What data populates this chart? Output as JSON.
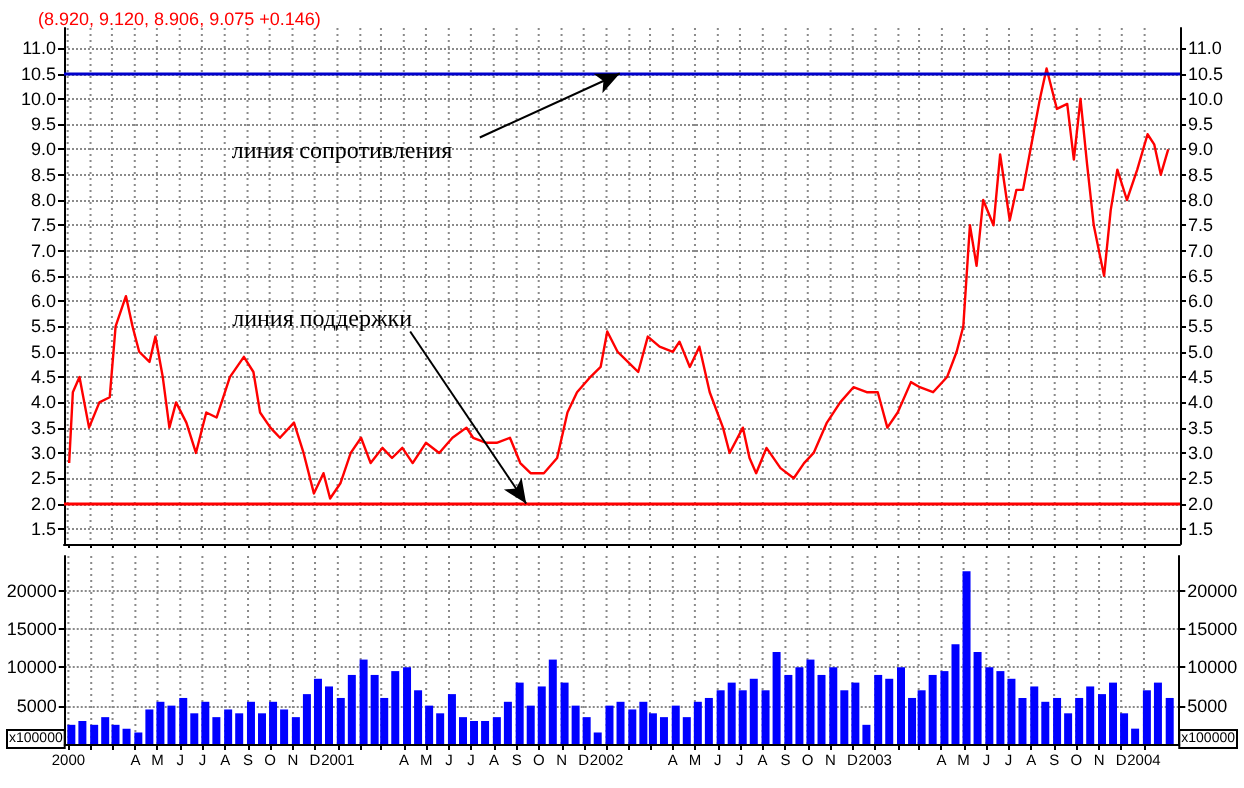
{
  "chart_data": [
    {
      "type": "line",
      "title": "(8.920, 9.120, 8.906, 9.075 +0.146)",
      "color": "#ff0000",
      "grid": true,
      "tick_labels": "y",
      "x": [
        "2000-01-03",
        "2000-01-08",
        "2000-01-17",
        "2000-01-30",
        "2000-02-13",
        "2000-02-27",
        "2000-03-06",
        "2000-03-20",
        "2000-03-29",
        "2000-04-07",
        "2000-04-21",
        "2000-04-29",
        "2000-05-09",
        "2000-05-18",
        "2000-05-27",
        "2000-06-10",
        "2000-06-23",
        "2000-07-07",
        "2000-07-21",
        "2000-08-08",
        "2000-08-27",
        "2000-09-09",
        "2000-09-18",
        "2000-10-02",
        "2000-10-15",
        "2000-11-03",
        "2000-11-16",
        "2000-11-30",
        "2000-12-13",
        "2000-12-22",
        "2001-01-05",
        "2001-01-19",
        "2001-02-02",
        "2001-02-15",
        "2001-03-03",
        "2001-03-16",
        "2001-03-30",
        "2001-04-13",
        "2001-05-01",
        "2001-05-19",
        "2001-06-06",
        "2001-06-25",
        "2001-07-04",
        "2001-07-22",
        "2001-08-05",
        "2001-08-23",
        "2001-09-06",
        "2001-09-20",
        "2001-10-08",
        "2001-10-26",
        "2001-11-09",
        "2001-11-22",
        "2001-12-10",
        "2001-12-24",
        "2002-01-02",
        "2002-01-16",
        "2002-01-30",
        "2002-02-13",
        "2002-02-26",
        "2002-03-14",
        "2002-04-01",
        "2002-04-10",
        "2002-04-24",
        "2002-05-07",
        "2002-05-21",
        "2002-06-08",
        "2002-06-17",
        "2002-07-05",
        "2002-07-14",
        "2002-07-23",
        "2002-08-06",
        "2002-08-25",
        "2002-09-12",
        "2002-09-26",
        "2002-10-09",
        "2002-10-27",
        "2002-11-14",
        "2002-12-02",
        "2002-12-20",
        "2003-01-04",
        "2003-01-17",
        "2003-01-31",
        "2003-02-18",
        "2003-03-02",
        "2003-03-20",
        "2003-04-08",
        "2003-04-21",
        "2003-04-30",
        "2003-05-09",
        "2003-05-18",
        "2003-05-27",
        "2003-06-10",
        "2003-06-19",
        "2003-07-02",
        "2003-07-11",
        "2003-07-20",
        "2003-08-03",
        "2003-08-12",
        "2003-08-21",
        "2003-09-04",
        "2003-09-18",
        "2003-09-27",
        "2003-10-06",
        "2003-10-15",
        "2003-10-24",
        "2003-11-07",
        "2003-11-16",
        "2003-11-25",
        "2003-12-08",
        "2003-12-22",
        "2004-01-05",
        "2004-01-14",
        "2004-01-23",
        "2004-02-02"
      ],
      "values": [
        2.8,
        4.2,
        4.5,
        3.5,
        4.0,
        4.1,
        5.5,
        6.1,
        5.5,
        5.0,
        4.8,
        5.3,
        4.5,
        3.5,
        4.0,
        3.6,
        3.0,
        3.8,
        3.7,
        4.5,
        4.9,
        4.6,
        3.8,
        3.5,
        3.3,
        3.6,
        3.0,
        2.2,
        2.6,
        2.1,
        2.4,
        3.0,
        3.3,
        2.8,
        3.1,
        2.9,
        3.1,
        2.8,
        3.2,
        3.0,
        3.3,
        3.5,
        3.3,
        3.2,
        3.2,
        3.3,
        2.8,
        2.6,
        2.6,
        2.9,
        3.8,
        4.2,
        4.5,
        4.7,
        5.4,
        5.0,
        4.8,
        4.6,
        5.3,
        5.1,
        5.0,
        5.2,
        4.7,
        5.1,
        4.2,
        3.5,
        3.0,
        3.5,
        2.9,
        2.6,
        3.1,
        2.7,
        2.5,
        2.8,
        3.0,
        3.6,
        4.0,
        4.3,
        4.2,
        4.2,
        3.5,
        3.8,
        4.4,
        4.3,
        4.2,
        4.5,
        5.0,
        5.5,
        7.5,
        6.7,
        8.0,
        7.5,
        8.9,
        7.6,
        8.2,
        8.2,
        9.3,
        10.0,
        10.6,
        9.8,
        9.9,
        8.8,
        10.0,
        8.7,
        7.5,
        6.5,
        7.8,
        8.6,
        8.0,
        8.6,
        9.3,
        9.1,
        8.5,
        9.0
      ],
      "xlim": [
        "1999-12-27",
        "2004-02-18"
      ],
      "xticks": [
        {
          "value": "2000-01",
          "label": null
        },
        {
          "value": "2000-02",
          "label": null
        },
        {
          "value": "2000-03",
          "label": null
        },
        {
          "value": "2000-04",
          "label": null
        },
        {
          "value": "2000-05",
          "label": null
        },
        {
          "value": "2000-06",
          "label": null
        },
        {
          "value": "2000-07",
          "label": null
        },
        {
          "value": "2000-08",
          "label": null
        },
        {
          "value": "2000-09",
          "label": null
        },
        {
          "value": "2000-10",
          "label": null
        },
        {
          "value": "2000-11",
          "label": null
        },
        {
          "value": "2000-12",
          "label": null
        },
        {
          "value": "2001-01",
          "label": null
        },
        {
          "value": "2001-02",
          "label": null
        },
        {
          "value": "2001-03",
          "label": null
        },
        {
          "value": "2001-04",
          "label": null
        },
        {
          "value": "2001-05",
          "label": null
        },
        {
          "value": "2001-06",
          "label": null
        },
        {
          "value": "2001-07",
          "label": null
        },
        {
          "value": "2001-08",
          "label": null
        },
        {
          "value": "2001-09",
          "label": null
        },
        {
          "value": "2001-10",
          "label": null
        },
        {
          "value": "2001-11",
          "label": null
        },
        {
          "value": "2001-12",
          "label": null
        },
        {
          "value": "2002-01",
          "label": null
        },
        {
          "value": "2002-02",
          "label": null
        },
        {
          "value": "2002-03",
          "label": null
        },
        {
          "value": "2002-04",
          "label": null
        },
        {
          "value": "2002-05",
          "label": null
        },
        {
          "value": "2002-06",
          "label": null
        },
        {
          "value": "2002-07",
          "label": null
        },
        {
          "value": "2002-08",
          "label": null
        },
        {
          "value": "2002-09",
          "label": null
        },
        {
          "value": "2002-10",
          "label": null
        },
        {
          "value": "2002-11",
          "label": null
        },
        {
          "value": "2002-12",
          "label": null
        },
        {
          "value": "2003-01",
          "label": null
        },
        {
          "value": "2003-02",
          "label": null
        },
        {
          "value": "2003-03",
          "label": null
        },
        {
          "value": "2003-04",
          "label": null
        },
        {
          "value": "2003-05",
          "label": null
        },
        {
          "value": "2003-06",
          "label": null
        },
        {
          "value": "2003-07",
          "label": null
        },
        {
          "value": "2003-08",
          "label": null
        },
        {
          "value": "2003-09",
          "label": null
        },
        {
          "value": "2003-10",
          "label": null
        },
        {
          "value": "2003-11",
          "label": null
        },
        {
          "value": "2003-12",
          "label": null
        },
        {
          "value": "2004-01",
          "label": null
        }
      ],
      "ylim": [
        1.2,
        11.4
      ],
      "yticks": [
        1.5,
        {
          "value": 2,
          "label": "2.0"
        },
        2.5,
        {
          "value": 3,
          "label": "3.0"
        },
        3.5,
        {
          "value": 4,
          "label": "4.0"
        },
        4.5,
        {
          "value": 5,
          "label": "5.0"
        },
        5.5,
        {
          "value": 6,
          "label": "6.0"
        },
        6.5,
        {
          "value": 7,
          "label": "7.0"
        },
        7.5,
        {
          "value": 8,
          "label": "8.0"
        },
        8.5,
        {
          "value": 9,
          "label": "9.0"
        },
        9.5,
        {
          "value": 10,
          "label": "10.0"
        },
        10.5,
        {
          "value": 11,
          "label": "11.0"
        }
      ],
      "y2lim": [
        1.2,
        11.4
      ],
      "y2ticks": [
        1.5,
        {
          "value": 2,
          "label": "2.0"
        },
        2.5,
        {
          "value": 3,
          "label": "3.0"
        },
        3.5,
        {
          "value": 4,
          "label": "4.0"
        },
        4.5,
        {
          "value": 5,
          "label": "5.0"
        },
        5.5,
        {
          "value": 6,
          "label": "6.0"
        },
        6.5,
        {
          "value": 7,
          "label": "7.0"
        },
        7.5,
        {
          "value": 8,
          "label": "8.0"
        },
        8.5,
        {
          "value": 9,
          "label": "9.0"
        },
        9.5,
        {
          "value": 10,
          "label": "10.0"
        },
        10.5,
        {
          "value": 11,
          "label": "11.0"
        }
      ],
      "ref_lines": [
        {
          "axis": "y",
          "value": 10.5,
          "color": "#0000cc"
        },
        {
          "axis": "y",
          "value": 2.0,
          "color": "#ff0000"
        }
      ],
      "annotations": [
        {
          "text": "линия сопротивления",
          "x": "2002-01-19",
          "y": 10.5
        },
        {
          "text": "линия поддержки",
          "x": "2001-09-14",
          "y": 2.0
        }
      ]
    },
    {
      "type": "bar",
      "color": "#0000ff",
      "grid": true,
      "ylabel": "x100000",
      "y2label": "x100000",
      "x": [
        "2000-01-05",
        "2000-01-20",
        "2000-02-05",
        "2000-02-20",
        "2000-03-05",
        "2000-03-20",
        "2000-04-05",
        "2000-04-20",
        "2000-05-05",
        "2000-05-20",
        "2000-06-05",
        "2000-06-20",
        "2000-07-05",
        "2000-07-20",
        "2000-08-05",
        "2000-08-20",
        "2000-09-05",
        "2000-09-20",
        "2000-10-05",
        "2000-10-20",
        "2000-11-05",
        "2000-11-20",
        "2000-12-05",
        "2000-12-20",
        "2001-01-05",
        "2001-01-20",
        "2001-02-05",
        "2001-02-20",
        "2001-03-05",
        "2001-03-20",
        "2001-04-05",
        "2001-04-20",
        "2001-05-05",
        "2001-05-20",
        "2001-06-05",
        "2001-06-20",
        "2001-07-05",
        "2001-07-20",
        "2001-08-05",
        "2001-08-20",
        "2001-09-05",
        "2001-09-20",
        "2001-10-05",
        "2001-10-20",
        "2001-11-05",
        "2001-11-20",
        "2001-12-05",
        "2001-12-20",
        "2002-01-05",
        "2002-01-20",
        "2002-02-05",
        "2002-02-20",
        "2002-03-05",
        "2002-03-20",
        "2002-04-05",
        "2002-04-20",
        "2002-05-05",
        "2002-05-20",
        "2002-06-05",
        "2002-06-20",
        "2002-07-05",
        "2002-07-20",
        "2002-08-05",
        "2002-08-20",
        "2002-09-05",
        "2002-09-20",
        "2002-10-05",
        "2002-10-20",
        "2002-11-05",
        "2002-11-20",
        "2002-12-05",
        "2002-12-20",
        "2003-01-05",
        "2003-01-20",
        "2003-02-05",
        "2003-02-20",
        "2003-03-05",
        "2003-03-20",
        "2003-04-05",
        "2003-04-20",
        "2003-05-05",
        "2003-05-20",
        "2003-06-05",
        "2003-06-20",
        "2003-07-05",
        "2003-07-20",
        "2003-08-05",
        "2003-08-20",
        "2003-09-05",
        "2003-09-20",
        "2003-10-05",
        "2003-10-20",
        "2003-11-05",
        "2003-11-20",
        "2003-12-05",
        "2003-12-20",
        "2004-01-05",
        "2004-01-20",
        "2004-02-05"
      ],
      "values": [
        2500,
        3000,
        2500,
        3500,
        2500,
        2000,
        1500,
        4500,
        5500,
        5000,
        6000,
        4000,
        5500,
        3500,
        4500,
        4000,
        5500,
        4000,
        5500,
        4500,
        3500,
        6500,
        8500,
        7500,
        6000,
        9000,
        11000,
        9000,
        6000,
        9500,
        10000,
        7000,
        5000,
        4000,
        6500,
        3500,
        3000,
        3000,
        3500,
        5500,
        8000,
        5000,
        7500,
        11000,
        8000,
        5000,
        3500,
        1500,
        5000,
        5500,
        4500,
        5500,
        4000,
        3500,
        5000,
        3500,
        5500,
        6000,
        7000,
        8000,
        7000,
        8500,
        7000,
        12000,
        9000,
        10000,
        11000,
        9000,
        10000,
        7000,
        8000,
        2500,
        9000,
        8500,
        10000,
        6000,
        7000,
        9000,
        9500,
        13000,
        22500,
        12000,
        10000,
        9500,
        8500,
        6000,
        7500,
        5500,
        6000,
        4000,
        6000,
        7500,
        6500,
        8000,
        4000,
        2000,
        7000,
        8000,
        6000
      ],
      "xlim": [
        "1999-12-27",
        "2004-02-18"
      ],
      "xticks": [
        {
          "value": "2000-01",
          "label": "2000"
        },
        {
          "value": "2000-02",
          "label": null
        },
        {
          "value": "2000-03",
          "label": null
        },
        {
          "value": "2000-04",
          "label": "A"
        },
        {
          "value": "2000-05",
          "label": "M"
        },
        {
          "value": "2000-06",
          "label": "J"
        },
        {
          "value": "2000-07",
          "label": "J"
        },
        {
          "value": "2000-08",
          "label": "A"
        },
        {
          "value": "2000-09",
          "label": "S"
        },
        {
          "value": "2000-10",
          "label": "O"
        },
        {
          "value": "2000-11",
          "label": "N"
        },
        {
          "value": "2000-12",
          "label": "D"
        },
        {
          "value": "2001-01",
          "label": "2001"
        },
        {
          "value": "2001-02",
          "label": null
        },
        {
          "value": "2001-03",
          "label": null
        },
        {
          "value": "2001-04",
          "label": "A"
        },
        {
          "value": "2001-05",
          "label": "M"
        },
        {
          "value": "2001-06",
          "label": "J"
        },
        {
          "value": "2001-07",
          "label": "J"
        },
        {
          "value": "2001-08",
          "label": "A"
        },
        {
          "value": "2001-09",
          "label": "S"
        },
        {
          "value": "2001-10",
          "label": "O"
        },
        {
          "value": "2001-11",
          "label": "N"
        },
        {
          "value": "2001-12",
          "label": "D"
        },
        {
          "value": "2002-01",
          "label": "2002"
        },
        {
          "value": "2002-02",
          "label": null
        },
        {
          "value": "2002-03",
          "label": null
        },
        {
          "value": "2002-04",
          "label": "A"
        },
        {
          "value": "2002-05",
          "label": "M"
        },
        {
          "value": "2002-06",
          "label": "J"
        },
        {
          "value": "2002-07",
          "label": "J"
        },
        {
          "value": "2002-08",
          "label": "A"
        },
        {
          "value": "2002-09",
          "label": "S"
        },
        {
          "value": "2002-10",
          "label": "O"
        },
        {
          "value": "2002-11",
          "label": "N"
        },
        {
          "value": "2002-12",
          "label": "D"
        },
        {
          "value": "2003-01",
          "label": "2003"
        },
        {
          "value": "2003-02",
          "label": null
        },
        {
          "value": "2003-03",
          "label": null
        },
        {
          "value": "2003-04",
          "label": "A"
        },
        {
          "value": "2003-05",
          "label": "M"
        },
        {
          "value": "2003-06",
          "label": "J"
        },
        {
          "value": "2003-07",
          "label": "J"
        },
        {
          "value": "2003-08",
          "label": "A"
        },
        {
          "value": "2003-09",
          "label": "S"
        },
        {
          "value": "2003-10",
          "label": "O"
        },
        {
          "value": "2003-11",
          "label": "N"
        },
        {
          "value": "2003-12",
          "label": "D"
        },
        {
          "value": "2004-01",
          "label": "2004"
        }
      ],
      "ylim": [
        0,
        24500
      ],
      "yticks": [
        5000,
        10000,
        15000,
        20000
      ],
      "y2lim": [
        0,
        24500
      ],
      "y2ticks": [
        5000,
        10000,
        15000,
        20000
      ]
    }
  ]
}
